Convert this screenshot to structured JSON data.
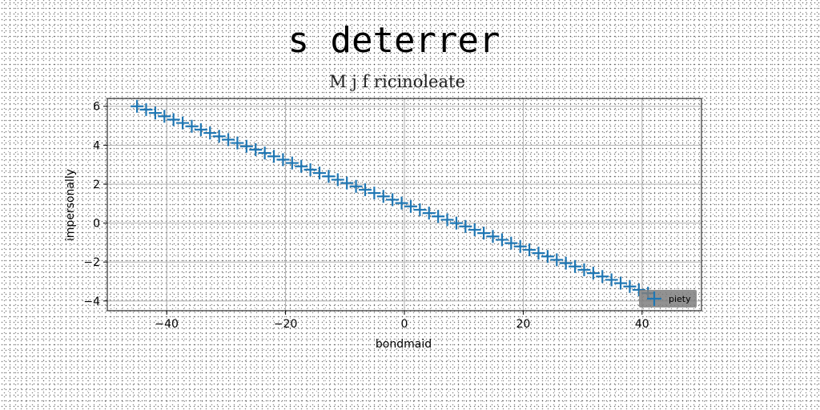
{
  "chart_data": {
    "type": "scatter",
    "title": "s deterrer",
    "subtitle": "M j f ricinoleate",
    "xlabel": "bondmaid",
    "ylabel": "impersonally",
    "xlim": [
      -50,
      50
    ],
    "ylim": [
      -4.5,
      6.4
    ],
    "xticks": [
      -40,
      -20,
      0,
      20,
      40
    ],
    "xtick_labels": [
      "−40",
      "−20",
      "0",
      "20",
      "40"
    ],
    "yticks": [
      -4,
      -2,
      0,
      2,
      4,
      6
    ],
    "ytick_labels": [
      "−4",
      "−2",
      "0",
      "2",
      "4",
      "6"
    ],
    "grid": true,
    "legend_position": "lower-right",
    "series": [
      {
        "name": "piety",
        "marker": "+",
        "color": "#1f77b4",
        "x_start": -45,
        "x_end": 41,
        "y_start": 6.0,
        "y_end": -3.6,
        "count": 57
      }
    ]
  }
}
